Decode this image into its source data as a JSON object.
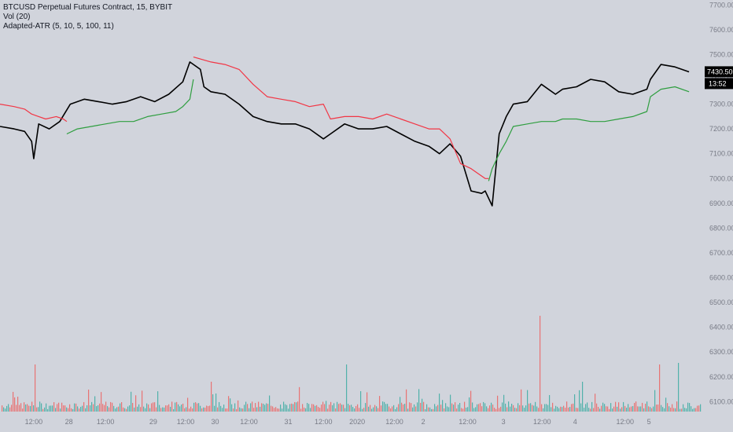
{
  "legend": {
    "symbol_title": "BTCUSD Perpetual Futures Contract, 15, BYBIT",
    "volume": "Vol (20)",
    "indicator": "Adapted-ATR (5, 10, 5, 100, 11)"
  },
  "price_badge": {
    "price": "7430.50",
    "countdown": "13:52"
  },
  "colors": {
    "background": "#d1d4dc",
    "price_line": "#000000",
    "atr_upper": "#f23645",
    "atr_lower": "#2e9e3f",
    "volume_up": "#26a69a",
    "volume_down": "#ef5350",
    "axis_text": "#787b86",
    "badge_bg": "#000000",
    "badge_text": "#ffffff"
  },
  "chart_data": {
    "type": "line",
    "title": "BTCUSD Perpetual Futures Contract, 15, BYBIT",
    "xlabel": "",
    "ylabel": "",
    "ylim": [
      6060,
      7720
    ],
    "y_ticks": [
      6100,
      6200,
      6300,
      6400,
      6500,
      6600,
      6700,
      6800,
      6900,
      7000,
      7100,
      7200,
      7300,
      7400,
      7500,
      7600,
      7700
    ],
    "x_ticks": [
      {
        "x": 0.048,
        "label": "12:00"
      },
      {
        "x": 0.098,
        "label": "28"
      },
      {
        "x": 0.15,
        "label": "12:00"
      },
      {
        "x": 0.218,
        "label": "29"
      },
      {
        "x": 0.264,
        "label": "12:00"
      },
      {
        "x": 0.306,
        "label": "30"
      },
      {
        "x": 0.354,
        "label": "12:00"
      },
      {
        "x": 0.41,
        "label": "31"
      },
      {
        "x": 0.46,
        "label": "12:00"
      },
      {
        "x": 0.508,
        "label": "2020"
      },
      {
        "x": 0.561,
        "label": "12:00"
      },
      {
        "x": 0.602,
        "label": "2"
      },
      {
        "x": 0.665,
        "label": "12:00"
      },
      {
        "x": 0.716,
        "label": "3"
      },
      {
        "x": 0.771,
        "label": "12:00"
      },
      {
        "x": 0.818,
        "label": "4"
      },
      {
        "x": 0.889,
        "label": "12:00"
      },
      {
        "x": 0.923,
        "label": "5"
      }
    ],
    "series": [
      {
        "name": "Price",
        "x": [
          0.0,
          0.02,
          0.035,
          0.045,
          0.048,
          0.055,
          0.07,
          0.085,
          0.1,
          0.12,
          0.14,
          0.16,
          0.18,
          0.2,
          0.22,
          0.24,
          0.26,
          0.27,
          0.285,
          0.29,
          0.3,
          0.32,
          0.34,
          0.36,
          0.38,
          0.4,
          0.42,
          0.44,
          0.46,
          0.47,
          0.49,
          0.51,
          0.53,
          0.55,
          0.57,
          0.59,
          0.61,
          0.625,
          0.64,
          0.655,
          0.67,
          0.685,
          0.69,
          0.7,
          0.71,
          0.72,
          0.73,
          0.75,
          0.77,
          0.79,
          0.8,
          0.82,
          0.84,
          0.86,
          0.88,
          0.9,
          0.92,
          0.925,
          0.94,
          0.96,
          0.98
        ],
        "values": [
          7210,
          7200,
          7190,
          7150,
          7080,
          7220,
          7200,
          7230,
          7300,
          7320,
          7310,
          7300,
          7310,
          7330,
          7310,
          7340,
          7390,
          7470,
          7440,
          7370,
          7350,
          7340,
          7300,
          7250,
          7230,
          7220,
          7220,
          7200,
          7160,
          7180,
          7220,
          7200,
          7200,
          7210,
          7180,
          7150,
          7130,
          7100,
          7140,
          7090,
          6950,
          6940,
          6950,
          6890,
          7180,
          7250,
          7300,
          7310,
          7380,
          7340,
          7360,
          7370,
          7400,
          7390,
          7350,
          7340,
          7360,
          7400,
          7460,
          7450,
          7430
        ]
      },
      {
        "name": "ATR upper",
        "x": [
          0.0,
          0.02,
          0.035,
          0.045,
          0.055,
          0.065,
          0.08,
          0.09,
          0.095,
          null,
          0.275,
          0.3,
          0.32,
          0.34,
          0.36,
          0.38,
          0.4,
          0.42,
          0.44,
          0.46,
          0.47,
          0.49,
          0.51,
          0.53,
          0.55,
          0.57,
          0.59,
          0.61,
          0.625,
          0.64,
          0.655,
          0.67,
          0.68,
          0.69,
          0.695
        ],
        "values": [
          7300,
          7290,
          7280,
          7260,
          7250,
          7240,
          7250,
          7240,
          7230,
          null,
          7490,
          7470,
          7460,
          7440,
          7380,
          7330,
          7320,
          7310,
          7290,
          7300,
          7240,
          7250,
          7250,
          7240,
          7260,
          7240,
          7220,
          7200,
          7200,
          7160,
          7060,
          7040,
          7020,
          7000,
          7000
        ]
      },
      {
        "name": "ATR lower",
        "x": [
          0.095,
          0.11,
          0.13,
          0.15,
          0.17,
          0.19,
          0.21,
          0.23,
          0.25,
          0.26,
          0.27,
          0.275,
          null,
          0.695,
          0.7,
          0.71,
          0.72,
          0.73,
          0.75,
          0.77,
          0.79,
          0.8,
          0.82,
          0.84,
          0.86,
          0.88,
          0.9,
          0.92,
          0.925,
          0.94,
          0.96,
          0.98
        ],
        "values": [
          7180,
          7200,
          7210,
          7220,
          7230,
          7230,
          7250,
          7260,
          7270,
          7290,
          7320,
          7400,
          null,
          6990,
          7040,
          7100,
          7150,
          7210,
          7220,
          7230,
          7230,
          7240,
          7240,
          7230,
          7230,
          7240,
          7250,
          7270,
          7330,
          7360,
          7370,
          7350
        ]
      }
    ]
  }
}
